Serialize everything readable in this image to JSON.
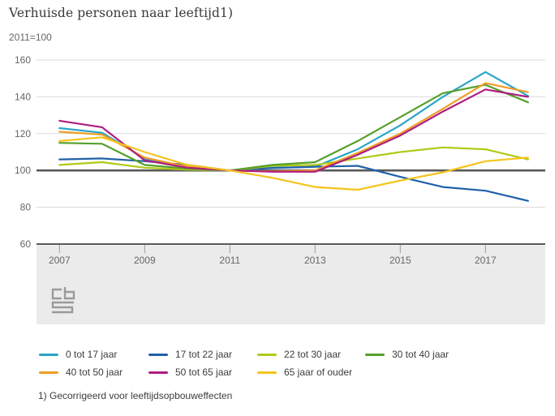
{
  "header": {
    "title": "Verhuisde personen naar leeftijd1)",
    "subtitle": "2011=100"
  },
  "footnote": "1) Gecorrigeerd voor leeftijdsopbouweffecten",
  "logo": {
    "name": "cbs-logo"
  },
  "colors": {
    "axis_strong": "#58585a",
    "gridline": "#dadada",
    "tick": "#9b9b9b",
    "band_background": "#ebebeb",
    "label_text": "#666666",
    "legend_text": "#3c3c3c"
  },
  "chart_data": {
    "type": "line",
    "title": "Verhuisde personen naar leeftijd1)",
    "ylabel": "2011=100",
    "x": [
      2007,
      2008,
      2009,
      2010,
      2011,
      2012,
      2013,
      2014,
      2015,
      2016,
      2017,
      2018
    ],
    "x_tick_labels": [
      "2007",
      "2009",
      "2011",
      "2013",
      "2015",
      "2017"
    ],
    "x_tick_years": [
      2007,
      2009,
      2011,
      2013,
      2015,
      2017
    ],
    "ylim": [
      60,
      160
    ],
    "yticks": [
      160,
      140,
      120,
      100,
      80,
      60
    ],
    "baseline_value": 100,
    "grid": true,
    "legend_position": "bottom",
    "series": [
      {
        "name": "0 tot 17 jaar",
        "color": "#2aa5c8",
        "values": [
          123,
          120.5,
          106.5,
          102,
          100,
          101.5,
          102,
          111.5,
          124.5,
          140,
          153.5,
          140.5
        ]
      },
      {
        "name": "17 tot 22 jaar",
        "color": "#2061a9",
        "values": [
          106,
          106.5,
          105,
          103,
          100,
          101.3,
          102,
          102.5,
          96.5,
          91,
          89,
          83.5
        ]
      },
      {
        "name": "22 tot 30 jaar",
        "color": "#b1c917",
        "values": [
          103,
          104.5,
          101.5,
          100.5,
          100,
          102.5,
          103,
          106.5,
          110,
          112.5,
          111.5,
          106
        ]
      },
      {
        "name": "30 tot 40 jaar",
        "color": "#55a029",
        "values": [
          115,
          114.5,
          103,
          101,
          100,
          103,
          104.5,
          116,
          129,
          142,
          146.5,
          137
        ]
      },
      {
        "name": "40 tot 50 jaar",
        "color": "#f09d25",
        "values": [
          121,
          119.5,
          107,
          102,
          100,
          99.5,
          100,
          109.5,
          120,
          133.5,
          147.5,
          142.5
        ]
      },
      {
        "name": "50 tot 65 jaar",
        "color": "#ae1d7f",
        "values": [
          127,
          123.5,
          105.5,
          101.5,
          100,
          99.3,
          99.3,
          108.5,
          119,
          132,
          144,
          140
        ]
      },
      {
        "name": "65 jaar of ouder",
        "color": "#f4c41c",
        "values": [
          116,
          118,
          110,
          103,
          100,
          96,
          91,
          89.5,
          94.5,
          99,
          105,
          107
        ]
      }
    ]
  }
}
